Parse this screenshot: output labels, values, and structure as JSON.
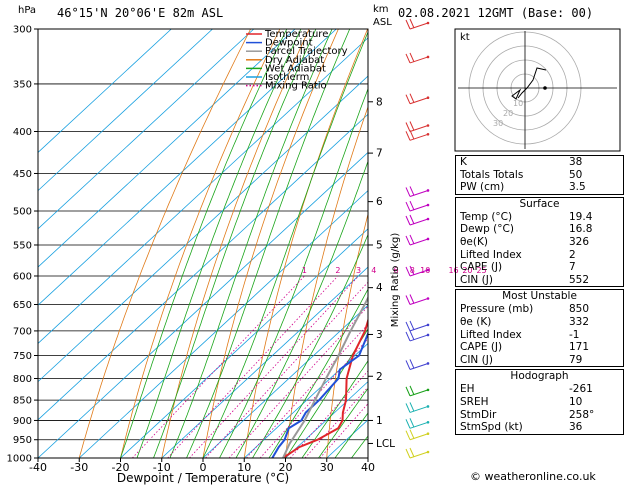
{
  "header": {
    "location": "46°15'N  20°06'E  82m  ASL",
    "datetime": "02.08.2021  12GMT  (Base: 00)",
    "hpa_label": "hPa",
    "km_label": "km",
    "asl_label": "ASL"
  },
  "legend": [
    {
      "name": "Temperature",
      "color": "#e0252a",
      "style": "solid"
    },
    {
      "name": "Dewpoint",
      "color": "#2050d8",
      "style": "solid"
    },
    {
      "name": "Parcel Trajectory",
      "color": "#999999",
      "style": "solid"
    },
    {
      "name": "Dry Adiabat",
      "color": "#e07a18",
      "style": "solid"
    },
    {
      "name": "Wet Adiabat",
      "color": "#1aa51a",
      "style": "solid"
    },
    {
      "name": "Isotherm",
      "color": "#18a0e0",
      "style": "solid"
    },
    {
      "name": "Mixing Ratio",
      "color": "#d0008a",
      "style": "dotted"
    }
  ],
  "chart_data": {
    "type": "line",
    "xlabel": "Dewpoint / Temperature (°C)",
    "ylabel": "hPa",
    "y2label": "Mixing Ratio (g/kg)",
    "xlim": [
      -40,
      40
    ],
    "ylim": [
      1000,
      300
    ],
    "y_scale": "log",
    "x_ticks": [
      -40,
      -30,
      -20,
      -10,
      0,
      10,
      20,
      30,
      40
    ],
    "pressure_ticks": [
      300,
      350,
      400,
      450,
      500,
      550,
      600,
      650,
      700,
      750,
      800,
      850,
      900,
      950,
      1000
    ],
    "km_ticks": [
      {
        "label": "8",
        "p": 368
      },
      {
        "label": "7",
        "p": 425
      },
      {
        "label": "6",
        "p": 487
      },
      {
        "label": "5",
        "p": 550
      },
      {
        "label": "4",
        "p": 620
      },
      {
        "label": "3",
        "p": 707
      },
      {
        "label": "2",
        "p": 795
      },
      {
        "label": "1",
        "p": 900
      },
      {
        "label": "LCL",
        "p": 960
      }
    ],
    "mixing_ratio_labels": [
      "1",
      "2",
      "3",
      "4",
      "6",
      "8",
      "10",
      "16",
      "20",
      "25"
    ],
    "mixing_ratio_values": [
      1,
      2,
      3,
      4,
      6,
      8,
      10,
      16,
      20,
      25
    ],
    "series": [
      {
        "name": "Temperature",
        "p": [
          1000,
          970,
          950,
          920,
          900,
          880,
          850,
          800,
          750,
          700,
          650,
          600,
          550,
          500,
          480,
          450,
          400,
          350,
          300
        ],
        "t": [
          19.4,
          20.5,
          23,
          25,
          24,
          22,
          19.5,
          14,
          9.5,
          6,
          1,
          -4,
          -8,
          -13,
          -11,
          -14,
          -22,
          -32,
          -42
        ]
      },
      {
        "name": "Dewpoint",
        "p": [
          1000,
          970,
          950,
          920,
          900,
          880,
          850,
          800,
          780,
          750,
          700,
          650,
          600,
          550,
          530,
          500,
          470,
          450,
          400,
          380,
          370,
          350,
          300
        ],
        "t": [
          16.8,
          15.5,
          15,
          13,
          14,
          13,
          13,
          12,
          10,
          11,
          7,
          0,
          -4,
          -8,
          -12,
          -20,
          -28,
          -34,
          -28,
          -18,
          -40,
          -33,
          -45
        ]
      },
      {
        "name": "Parcel Trajectory",
        "p": [
          1000,
          960,
          900,
          850,
          800,
          750,
          700,
          650,
          600,
          550,
          500,
          450,
          400,
          350,
          300
        ],
        "t": [
          19.4,
          17.2,
          14.8,
          12,
          9,
          6,
          2.5,
          -1,
          -5,
          -9.5,
          -14.5,
          -20,
          -26.5,
          -34,
          -43
        ]
      }
    ]
  },
  "hodograph": {
    "unit_label": "kt",
    "ring_labels": [
      "10",
      "20",
      "30"
    ]
  },
  "indices": [
    {
      "label": "K",
      "value": "38"
    },
    {
      "label": "Totals Totals",
      "value": "50"
    },
    {
      "label": "PW (cm)",
      "value": "3.5"
    }
  ],
  "surface": {
    "title": "Surface",
    "rows": [
      {
        "label": "Temp (°C)",
        "value": "19.4"
      },
      {
        "label": "Dewp (°C)",
        "value": "16.8"
      },
      {
        "label": "θe(K)",
        "value": "326"
      },
      {
        "label": "Lifted Index",
        "value": "2"
      },
      {
        "label": "CAPE (J)",
        "value": "7"
      },
      {
        "label": "CIN (J)",
        "value": "552"
      }
    ]
  },
  "most_unstable": {
    "title": "Most Unstable",
    "rows": [
      {
        "label": "Pressure (mb)",
        "value": "850"
      },
      {
        "label": "θe (K)",
        "value": "332"
      },
      {
        "label": "Lifted Index",
        "value": "-1"
      },
      {
        "label": "CAPE (J)",
        "value": "171"
      },
      {
        "label": "CIN (J)",
        "value": "79"
      }
    ]
  },
  "hodograph_table": {
    "title": "Hodograph",
    "rows": [
      {
        "label": "EH",
        "value": "-261"
      },
      {
        "label": "SREH",
        "value": "10"
      },
      {
        "label": "StmDir",
        "value": "258°"
      },
      {
        "label": "StmSpd (kt)",
        "value": "36"
      }
    ]
  },
  "copyright": "© weatheronline.co.uk"
}
